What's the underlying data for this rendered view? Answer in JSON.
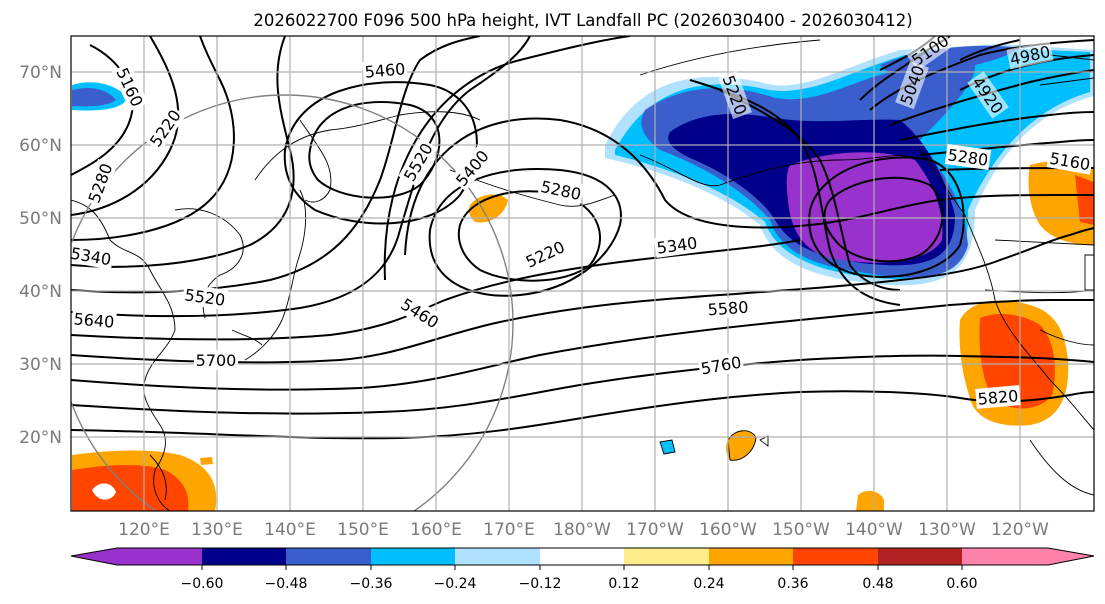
{
  "title": "2026022700 F096 500 hPa height, IVT Landfall PC (2026030400 - 2026030412)",
  "lat_labels": [
    "70°N",
    "60°N",
    "50°N",
    "40°N",
    "30°N",
    "20°N"
  ],
  "lon_labels": [
    "120°E",
    "130°E",
    "140°E",
    "150°E",
    "160°E",
    "170°E",
    "180°W",
    "170°W",
    "160°W",
    "150°W",
    "140°W",
    "130°W",
    "120°W"
  ],
  "contour_labels": {
    "c5160_a": "5160",
    "c5220_a": "5220",
    "c5280_a": "5280",
    "c5340_a": "5340",
    "c5460_a": "5460",
    "c5520_a": "5520",
    "c5400_a": "5400",
    "c5280_b": "5280",
    "c5220_b": "5220",
    "c5340_b": "5340",
    "c5460_b": "5460",
    "c5520_b": "5520",
    "c5640_a": "5640",
    "c5700_a": "5700",
    "c5580_a": "5580",
    "c5760_a": "5760",
    "c5820_a": "5820",
    "c5100_a": "5100",
    "c4980_a": "4980",
    "c5040_a": "5040",
    "c4920_a": "4920",
    "c5220_c": "5220",
    "c5280_c": "5280",
    "c5160_b": "5160"
  },
  "colorbar": {
    "tick_labels": [
      "−0.60",
      "−0.48",
      "−0.36",
      "−0.24",
      "−0.12",
      "0.12",
      "0.24",
      "0.36",
      "0.48",
      "0.60"
    ],
    "colors": [
      "#9932CC",
      "#00008B",
      "#3A5FCD",
      "#00BFFF",
      "#B0E2FF",
      "#FFFFFF",
      "#FFEC8B",
      "#FFA500",
      "#FF4500",
      "#B22222",
      "#FF82AB"
    ]
  }
}
